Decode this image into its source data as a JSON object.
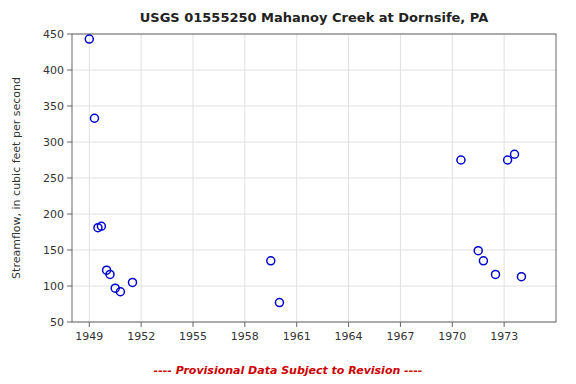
{
  "chart_data": {
    "type": "scatter",
    "title": "USGS 01555250 Mahanoy Creek at Dornsife, PA",
    "ylabel": "Streamflow, in cubic feet per second",
    "x": [
      1949.0,
      1949.3,
      1949.5,
      1949.7,
      1950.0,
      1950.2,
      1950.5,
      1950.8,
      1951.5,
      1959.5,
      1960.0,
      1970.5,
      1971.5,
      1971.8,
      1972.5,
      1973.2,
      1973.6,
      1974.0
    ],
    "values": [
      443,
      333,
      181,
      183,
      122,
      116,
      97,
      92,
      105,
      135,
      77,
      275,
      149,
      135,
      116,
      275,
      283,
      113
    ],
    "color": "#0000cc",
    "marker": "circle",
    "xlim": [
      1948.0,
      1976.0
    ],
    "ylim": [
      50,
      450
    ],
    "xticks": [
      1949,
      1952,
      1955,
      1958,
      1961,
      1964,
      1967,
      1970,
      1973
    ],
    "yticks": [
      50,
      100,
      150,
      200,
      250,
      300,
      350,
      400,
      450
    ],
    "grid": true,
    "annotations": [
      {
        "text": "---- Provisional Data Subject to Revision ----",
        "color": "#cc0000"
      }
    ]
  }
}
